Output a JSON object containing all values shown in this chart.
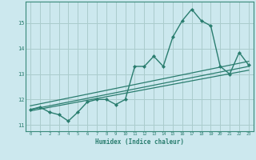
{
  "xlabel": "Humidex (Indice chaleur)",
  "bg_color": "#cce8ee",
  "grid_color": "#aacccc",
  "line_color": "#2a7d6f",
  "x_data": [
    0,
    1,
    2,
    3,
    4,
    5,
    6,
    7,
    8,
    9,
    10,
    11,
    12,
    13,
    14,
    15,
    16,
    17,
    18,
    19,
    20,
    21,
    22,
    23
  ],
  "y_main": [
    11.6,
    11.7,
    11.5,
    11.4,
    11.15,
    11.5,
    11.9,
    12.0,
    12.0,
    11.8,
    12.0,
    13.3,
    13.3,
    13.7,
    13.3,
    14.45,
    15.1,
    15.55,
    15.1,
    14.9,
    13.3,
    13.0,
    13.85,
    13.35
  ],
  "trend1_x": [
    0,
    23
  ],
  "trend1_y": [
    11.75,
    13.5
  ],
  "trend2_x": [
    0,
    23
  ],
  "trend2_y": [
    11.6,
    13.3
  ],
  "trend3_x": [
    0,
    23
  ],
  "trend3_y": [
    11.55,
    13.15
  ],
  "xlim": [
    -0.5,
    23.5
  ],
  "ylim": [
    10.75,
    15.85
  ],
  "yticks": [
    11,
    12,
    13,
    14,
    15
  ],
  "xticks": [
    0,
    1,
    2,
    3,
    4,
    5,
    6,
    7,
    8,
    9,
    10,
    11,
    12,
    13,
    14,
    15,
    16,
    17,
    18,
    19,
    20,
    21,
    22,
    23
  ]
}
